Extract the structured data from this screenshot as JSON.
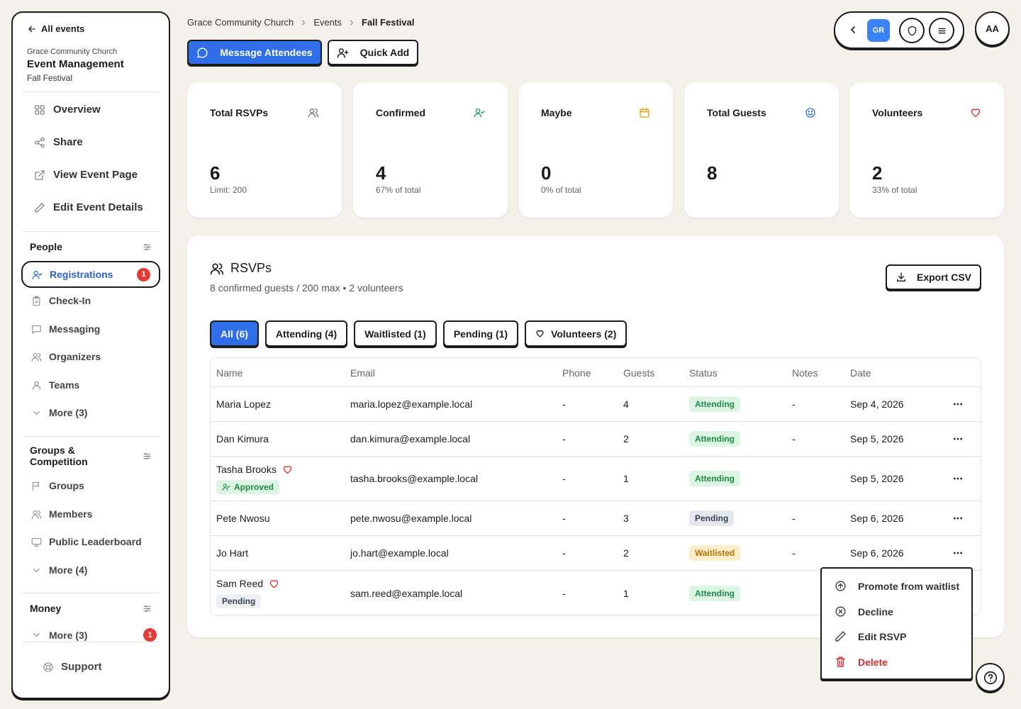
{
  "sidebar": {
    "back_label": "All events",
    "org": "Grace Community Church",
    "app_title": "Event Management",
    "event": "Fall Festival",
    "main_nav": [
      {
        "label": "Overview",
        "icon": "grid-icon"
      },
      {
        "label": "Share",
        "icon": "share-icon"
      },
      {
        "label": "View Event Page",
        "icon": "external-link-icon"
      },
      {
        "label": "Edit Event Details",
        "icon": "pencil-icon"
      }
    ],
    "people": {
      "title": "People",
      "items": [
        {
          "label": "Registrations",
          "badge": "1",
          "icon": "user-check-icon"
        },
        {
          "label": "Check-In",
          "icon": "clipboard-icon"
        },
        {
          "label": "Messaging",
          "icon": "message-icon"
        },
        {
          "label": "Organizers",
          "icon": "users-icon"
        },
        {
          "label": "Teams",
          "icon": "user-icon"
        },
        {
          "label": "More (3)",
          "icon": "chevron-down-icon"
        }
      ]
    },
    "groups": {
      "title": "Groups & Competition",
      "items": [
        {
          "label": "Groups",
          "icon": "flag-icon"
        },
        {
          "label": "Members",
          "icon": "users-icon"
        },
        {
          "label": "Public Leaderboard",
          "icon": "monitor-icon"
        },
        {
          "label": "More (4)",
          "icon": "chevron-down-icon"
        }
      ]
    },
    "money": {
      "title": "Money",
      "items": [
        {
          "label": "More (3)",
          "badge": "1",
          "icon": "chevron-down-icon"
        }
      ]
    },
    "support_label": "Support"
  },
  "header": {
    "breadcrumb": [
      "Grace Community Church",
      "Events",
      "Fall Festival"
    ],
    "message_btn": "Message Attendees",
    "quick_add_btn": "Quick Add",
    "org_chip": "GR",
    "avatar": "AA"
  },
  "stats": [
    {
      "label": "Total RSVPs",
      "value": "6",
      "sub": "Limit: 200",
      "icon": "users-icon",
      "color": "#777777"
    },
    {
      "label": "Confirmed",
      "value": "4",
      "sub": "67% of total",
      "icon": "user-check-icon",
      "color": "#1f9d55"
    },
    {
      "label": "Maybe",
      "value": "0",
      "sub": "0% of total",
      "icon": "calendar-icon",
      "color": "#e0a106"
    },
    {
      "label": "Total Guests",
      "value": "8",
      "sub": "",
      "icon": "smile-icon",
      "color": "#2f6ee8"
    },
    {
      "label": "Volunteers",
      "value": "2",
      "sub": "33% of total",
      "icon": "heart-icon",
      "color": "#e53935"
    }
  ],
  "rsvps": {
    "title": "RSVPs",
    "subtitle": "8 confirmed guests / 200 max • 2 volunteers",
    "export_label": "Export CSV",
    "filters": [
      {
        "label": "All (6)",
        "active": true
      },
      {
        "label": "Attending (4)"
      },
      {
        "label": "Waitlisted (1)"
      },
      {
        "label": "Pending (1)"
      },
      {
        "label": "Volunteers (2)",
        "icon": "heart-icon"
      }
    ],
    "columns": [
      "Name",
      "Email",
      "Phone",
      "Guests",
      "Status",
      "Notes",
      "Date"
    ],
    "rows": [
      {
        "name": "Maria Lopez",
        "email": "maria.lopez@example.local",
        "phone": "-",
        "guests": "4",
        "status": "Attending",
        "notes": "-",
        "date": "Sep 4, 2026"
      },
      {
        "name": "Dan Kimura",
        "email": "dan.kimura@example.local",
        "phone": "-",
        "guests": "2",
        "status": "Attending",
        "notes": "-",
        "date": "Sep 5, 2026"
      },
      {
        "name": "Tasha Brooks",
        "volunteer": true,
        "tag": "Approved",
        "email": "tasha.brooks@example.local",
        "phone": "-",
        "guests": "1",
        "status": "Attending",
        "notes": "",
        "date": "Sep 5, 2026"
      },
      {
        "name": "Pete Nwosu",
        "email": "pete.nwosu@example.local",
        "phone": "-",
        "guests": "3",
        "status": "Pending",
        "notes": "-",
        "date": "Sep 6, 2026"
      },
      {
        "name": "Jo Hart",
        "email": "jo.hart@example.local",
        "phone": "-",
        "guests": "2",
        "status": "Waitlisted",
        "notes": "-",
        "date": "Sep 6, 2026"
      },
      {
        "name": "Sam Reed",
        "volunteer": true,
        "tag": "Pending",
        "email": "sam.reed@example.local",
        "phone": "-",
        "guests": "1",
        "status": "Attending",
        "notes": "",
        "date": ""
      }
    ]
  },
  "context_menu": {
    "items": [
      {
        "label": "Promote from waitlist",
        "icon": "arrow-up-circle-icon"
      },
      {
        "label": "Decline",
        "icon": "x-circle-icon"
      },
      {
        "label": "Edit RSVP",
        "icon": "pencil-icon"
      },
      {
        "label": "Delete",
        "icon": "trash-icon"
      }
    ]
  }
}
